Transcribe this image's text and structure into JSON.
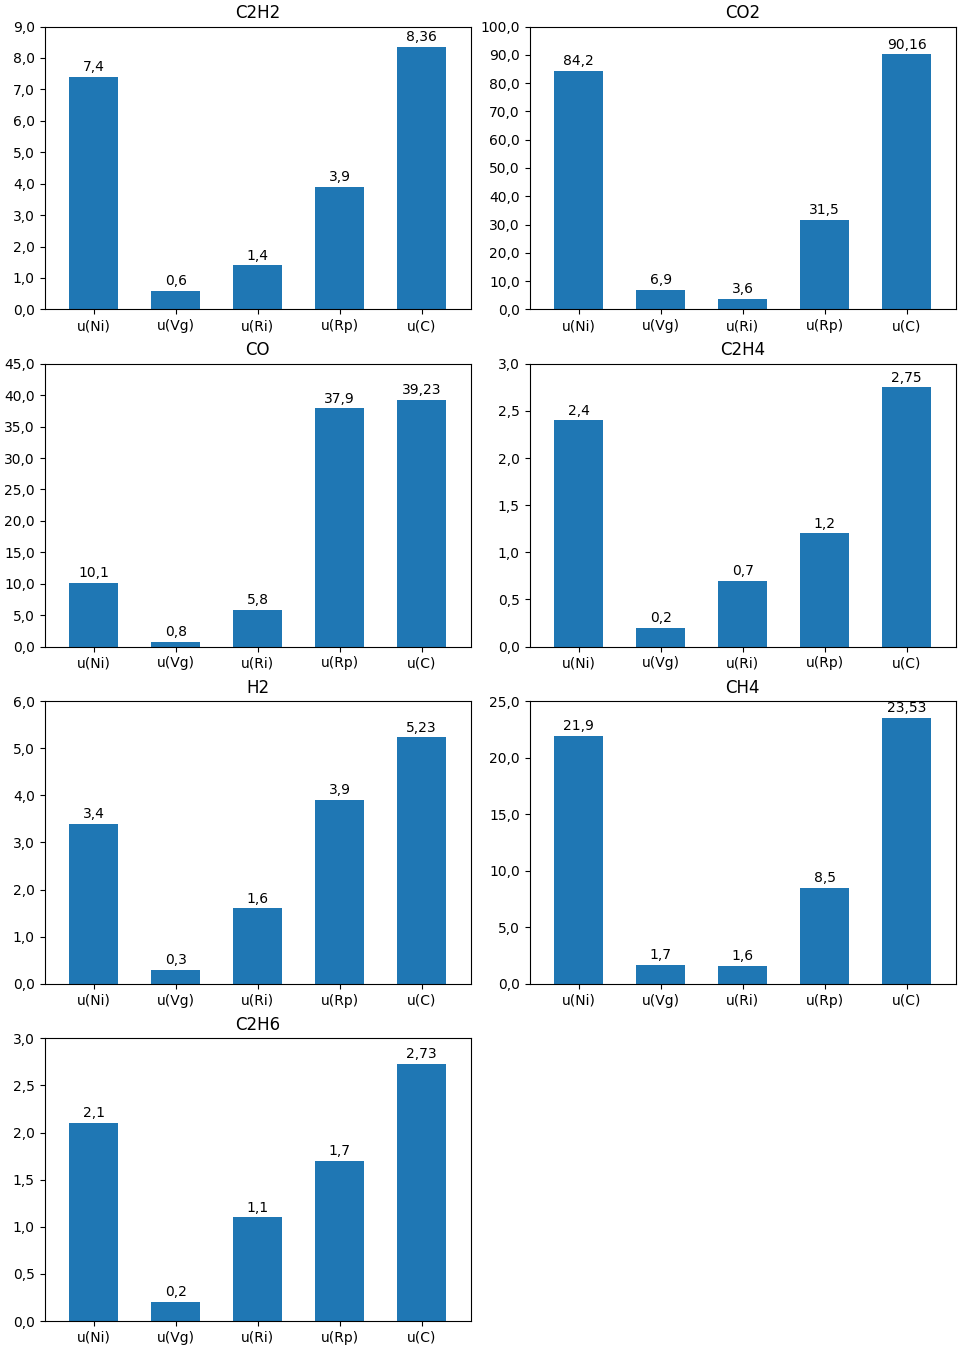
{
  "chart_data": [
    {
      "type": "bar",
      "title": "C2H2",
      "categories": [
        "u(Ni)",
        "u(Vg)",
        "u(Ri)",
        "u(Rp)",
        "u(C)"
      ],
      "values": [
        7.4,
        0.6,
        1.4,
        3.9,
        8.36
      ],
      "value_labels": [
        "7,4",
        "0,6",
        "1,4",
        "3,9",
        "8,36"
      ],
      "data_labels": true,
      "ylim": [
        0,
        9.0
      ],
      "yticks": [
        {
          "value": 0.0,
          "label": "0,0"
        },
        {
          "value": 1.0,
          "label": "1,0"
        },
        {
          "value": 2.0,
          "label": "2,0"
        },
        {
          "value": 3.0,
          "label": "3,0"
        },
        {
          "value": 4.0,
          "label": "4,0"
        },
        {
          "value": 5.0,
          "label": "5,0"
        },
        {
          "value": 6.0,
          "label": "6,0"
        },
        {
          "value": 7.0,
          "label": "7,0"
        },
        {
          "value": 8.0,
          "label": "8,0"
        },
        {
          "value": 9.0,
          "label": "9,0"
        }
      ]
    },
    {
      "type": "bar",
      "title": "CO2",
      "categories": [
        "u(Ni)",
        "u(Vg)",
        "u(Ri)",
        "u(Rp)",
        "u(C)"
      ],
      "values": [
        84.2,
        6.9,
        3.6,
        31.5,
        90.16
      ],
      "value_labels": [
        "84,2",
        "6,9",
        "3,6",
        "31,5",
        "90,16"
      ],
      "data_labels": true,
      "ylim": [
        0,
        100.0
      ],
      "yticks": [
        {
          "value": 0.0,
          "label": "0,0"
        },
        {
          "value": 10.0,
          "label": "10,0"
        },
        {
          "value": 20.0,
          "label": "20,0"
        },
        {
          "value": 30.0,
          "label": "30,0"
        },
        {
          "value": 40.0,
          "label": "40,0"
        },
        {
          "value": 50.0,
          "label": "50,0"
        },
        {
          "value": 60.0,
          "label": "60,0"
        },
        {
          "value": 70.0,
          "label": "70,0"
        },
        {
          "value": 80.0,
          "label": "80,0"
        },
        {
          "value": 90.0,
          "label": "90,0"
        },
        {
          "value": 100.0,
          "label": "100,0"
        }
      ]
    },
    {
      "type": "bar",
      "title": "CO",
      "categories": [
        "u(Ni)",
        "u(Vg)",
        "u(Ri)",
        "u(Rp)",
        "u(C)"
      ],
      "values": [
        10.1,
        0.8,
        5.8,
        37.9,
        39.23
      ],
      "value_labels": [
        "10,1",
        "0,8",
        "5,8",
        "37,9",
        "39,23"
      ],
      "data_labels": true,
      "ylim": [
        0,
        45.0
      ],
      "yticks": [
        {
          "value": 0.0,
          "label": "0,0"
        },
        {
          "value": 5.0,
          "label": "5,0"
        },
        {
          "value": 10.0,
          "label": "10,0"
        },
        {
          "value": 15.0,
          "label": "15,0"
        },
        {
          "value": 20.0,
          "label": "20,0"
        },
        {
          "value": 25.0,
          "label": "25,0"
        },
        {
          "value": 30.0,
          "label": "30,0"
        },
        {
          "value": 35.0,
          "label": "35,0"
        },
        {
          "value": 40.0,
          "label": "40,0"
        },
        {
          "value": 45.0,
          "label": "45,0"
        }
      ]
    },
    {
      "type": "bar",
      "title": "C2H4",
      "categories": [
        "u(Ni)",
        "u(Vg)",
        "u(Ri)",
        "u(Rp)",
        "u(C)"
      ],
      "values": [
        2.4,
        0.2,
        0.7,
        1.2,
        2.75
      ],
      "value_labels": [
        "2,4",
        "0,2",
        "0,7",
        "1,2",
        "2,75"
      ],
      "data_labels": true,
      "ylim": [
        0,
        3.0
      ],
      "yticks": [
        {
          "value": 0.0,
          "label": "0,0"
        },
        {
          "value": 0.5,
          "label": "0,5"
        },
        {
          "value": 1.0,
          "label": "1,0"
        },
        {
          "value": 1.5,
          "label": "1,5"
        },
        {
          "value": 2.0,
          "label": "2,0"
        },
        {
          "value": 2.5,
          "label": "2,5"
        },
        {
          "value": 3.0,
          "label": "3,0"
        }
      ]
    },
    {
      "type": "bar",
      "title": "H2",
      "categories": [
        "u(Ni)",
        "u(Vg)",
        "u(Ri)",
        "u(Rp)",
        "u(C)"
      ],
      "values": [
        3.4,
        0.3,
        1.6,
        3.9,
        5.23
      ],
      "value_labels": [
        "3,4",
        "0,3",
        "1,6",
        "3,9",
        "5,23"
      ],
      "data_labels": true,
      "ylim": [
        0,
        6.0
      ],
      "yticks": [
        {
          "value": 0.0,
          "label": "0,0"
        },
        {
          "value": 1.0,
          "label": "1,0"
        },
        {
          "value": 2.0,
          "label": "2,0"
        },
        {
          "value": 3.0,
          "label": "3,0"
        },
        {
          "value": 4.0,
          "label": "4,0"
        },
        {
          "value": 5.0,
          "label": "5,0"
        },
        {
          "value": 6.0,
          "label": "6,0"
        }
      ]
    },
    {
      "type": "bar",
      "title": "CH4",
      "categories": [
        "u(Ni)",
        "u(Vg)",
        "u(Ri)",
        "u(Rp)",
        "u(C)"
      ],
      "values": [
        21.9,
        1.7,
        1.6,
        8.5,
        23.53
      ],
      "value_labels": [
        "21,9",
        "1,7",
        "1,6",
        "8,5",
        "23,53"
      ],
      "data_labels": true,
      "ylim": [
        0,
        25.0
      ],
      "yticks": [
        {
          "value": 0.0,
          "label": "0,0"
        },
        {
          "value": 5.0,
          "label": "5,0"
        },
        {
          "value": 10.0,
          "label": "10,0"
        },
        {
          "value": 15.0,
          "label": "15,0"
        },
        {
          "value": 20.0,
          "label": "20,0"
        },
        {
          "value": 25.0,
          "label": "25,0"
        }
      ]
    },
    {
      "type": "bar",
      "title": "C2H6",
      "categories": [
        "u(Ni)",
        "u(Vg)",
        "u(Ri)",
        "u(Rp)",
        "u(C)"
      ],
      "values": [
        2.1,
        0.2,
        1.1,
        1.7,
        2.73
      ],
      "value_labels": [
        "2,1",
        "0,2",
        "1,1",
        "1,7",
        "2,73"
      ],
      "data_labels": true,
      "ylim": [
        0,
        3.0
      ],
      "yticks": [
        {
          "value": 0.0,
          "label": "0,0"
        },
        {
          "value": 0.5,
          "label": "0,5"
        },
        {
          "value": 1.0,
          "label": "1,0"
        },
        {
          "value": 1.5,
          "label": "1,5"
        },
        {
          "value": 2.0,
          "label": "2,0"
        },
        {
          "value": 2.5,
          "label": "2,5"
        },
        {
          "value": 3.0,
          "label": "3,0"
        }
      ]
    }
  ]
}
